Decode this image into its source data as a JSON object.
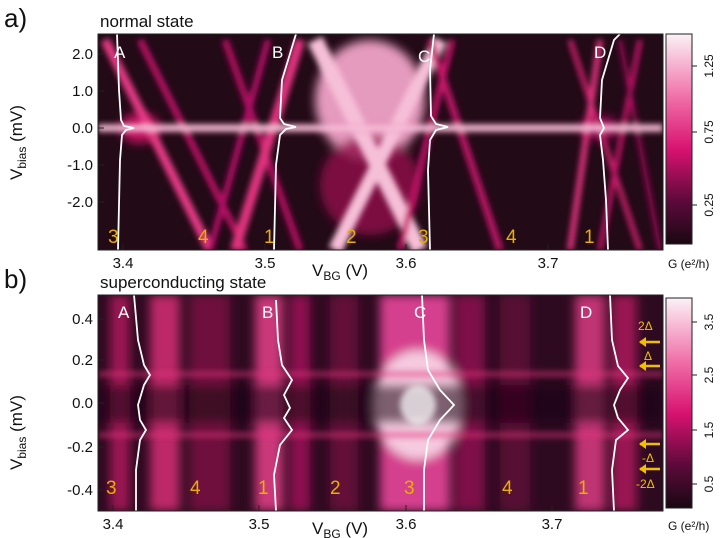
{
  "figure": {
    "panels": [
      {
        "letter": "a)",
        "title": "normal state",
        "ylabel_main": "V",
        "ylabel_sub": "bias",
        "ylabel_unit": " (mV)",
        "xlabel_main": "V",
        "xlabel_sub": "BG",
        "xlabel_unit": " (V)",
        "xticks": [
          "3.4",
          "3.5",
          "3.6",
          "3.7"
        ],
        "yticks": [
          "2.0",
          "1.0",
          "0.0",
          "-1.0",
          "-2.0"
        ],
        "peak_labels": [
          "A",
          "B",
          "C",
          "D"
        ],
        "charge_numbers": [
          "3",
          "4",
          "1",
          "2",
          "3",
          "4",
          "1"
        ],
        "colorbar_ticks": [
          "1.25",
          "0.75",
          "0.25"
        ],
        "colorbar_label": "G (e²/h)"
      },
      {
        "letter": "b)",
        "title": "superconducting state",
        "ylabel_main": "V",
        "ylabel_sub": "bias",
        "ylabel_unit": " (mV)",
        "xlabel_main": "V",
        "xlabel_sub": "BG",
        "xlabel_unit": " (V)",
        "xticks": [
          "3.4",
          "3.5",
          "3.6",
          "3.7"
        ],
        "yticks": [
          "0.4",
          "0.2",
          "0.0",
          "-0.2",
          "-0.4"
        ],
        "peak_labels": [
          "A",
          "B",
          "C",
          "D"
        ],
        "charge_numbers": [
          "3",
          "4",
          "1",
          "2",
          "3",
          "4",
          "1"
        ],
        "colorbar_ticks": [
          "3.5",
          "2.5",
          "1.5",
          "0.5"
        ],
        "colorbar_label": "G (e²/h)",
        "gap_labels": [
          "2Δ",
          "Δ",
          "-Δ",
          "-2Δ"
        ]
      }
    ],
    "colors": {
      "low": "#1a0812",
      "mid": "#e0106a",
      "high": "#fbeef4",
      "trace": "#ffffff",
      "numbers": "#e8b000"
    }
  },
  "chart_data": [
    {
      "type": "heatmap",
      "title": "normal state",
      "xlabel": "VBG (V)",
      "ylabel": "Vbias (mV)",
      "xlim": [
        3.38,
        3.78
      ],
      "ylim": [
        -2.5,
        2.5
      ],
      "colorbar": {
        "label": "G (e²/h)",
        "ticks": [
          0.25,
          0.75,
          1.25
        ],
        "range": [
          0.05,
          1.4
        ]
      },
      "peaks": [
        {
          "name": "A",
          "x": 3.425
        },
        {
          "name": "B",
          "x": 3.522
        },
        {
          "name": "C",
          "x": 3.613
        },
        {
          "name": "D",
          "x": 3.722
        }
      ],
      "charge_states": [
        {
          "label": "3",
          "x": 3.405
        },
        {
          "label": "4",
          "x": 3.47
        },
        {
          "label": "1",
          "x": 3.512
        },
        {
          "label": "2",
          "x": 3.565
        },
        {
          "label": "3",
          "x": 3.612
        },
        {
          "label": "4",
          "x": 3.673
        },
        {
          "label": "1",
          "x": 3.728
        }
      ]
    },
    {
      "type": "heatmap",
      "title": "superconducting state",
      "xlabel": "VBG (V)",
      "ylabel": "Vbias (mV)",
      "xlim": [
        3.39,
        3.76
      ],
      "ylim": [
        -0.5,
        0.5
      ],
      "colorbar": {
        "label": "G (e²/h)",
        "ticks": [
          0.5,
          1.5,
          2.5,
          3.5
        ],
        "range": [
          0.1,
          4.0
        ]
      },
      "peaks": [
        {
          "name": "A",
          "x": 3.435
        },
        {
          "name": "B",
          "x": 3.518
        },
        {
          "name": "C",
          "x": 3.61
        },
        {
          "name": "D",
          "x": 3.718
        }
      ],
      "gap_markers": [
        {
          "label": "2Δ",
          "y": 0.34
        },
        {
          "label": "Δ",
          "y": 0.17
        },
        {
          "label": "-Δ",
          "y": -0.17
        },
        {
          "label": "-2Δ",
          "y": -0.34
        }
      ],
      "charge_states": [
        {
          "label": "3",
          "x": 3.405
        },
        {
          "label": "4",
          "x": 3.465
        },
        {
          "label": "1",
          "x": 3.508
        },
        {
          "label": "2",
          "x": 3.565
        },
        {
          "label": "3",
          "x": 3.617
        },
        {
          "label": "4",
          "x": 3.672
        },
        {
          "label": "1",
          "x": 3.725
        }
      ]
    }
  ]
}
